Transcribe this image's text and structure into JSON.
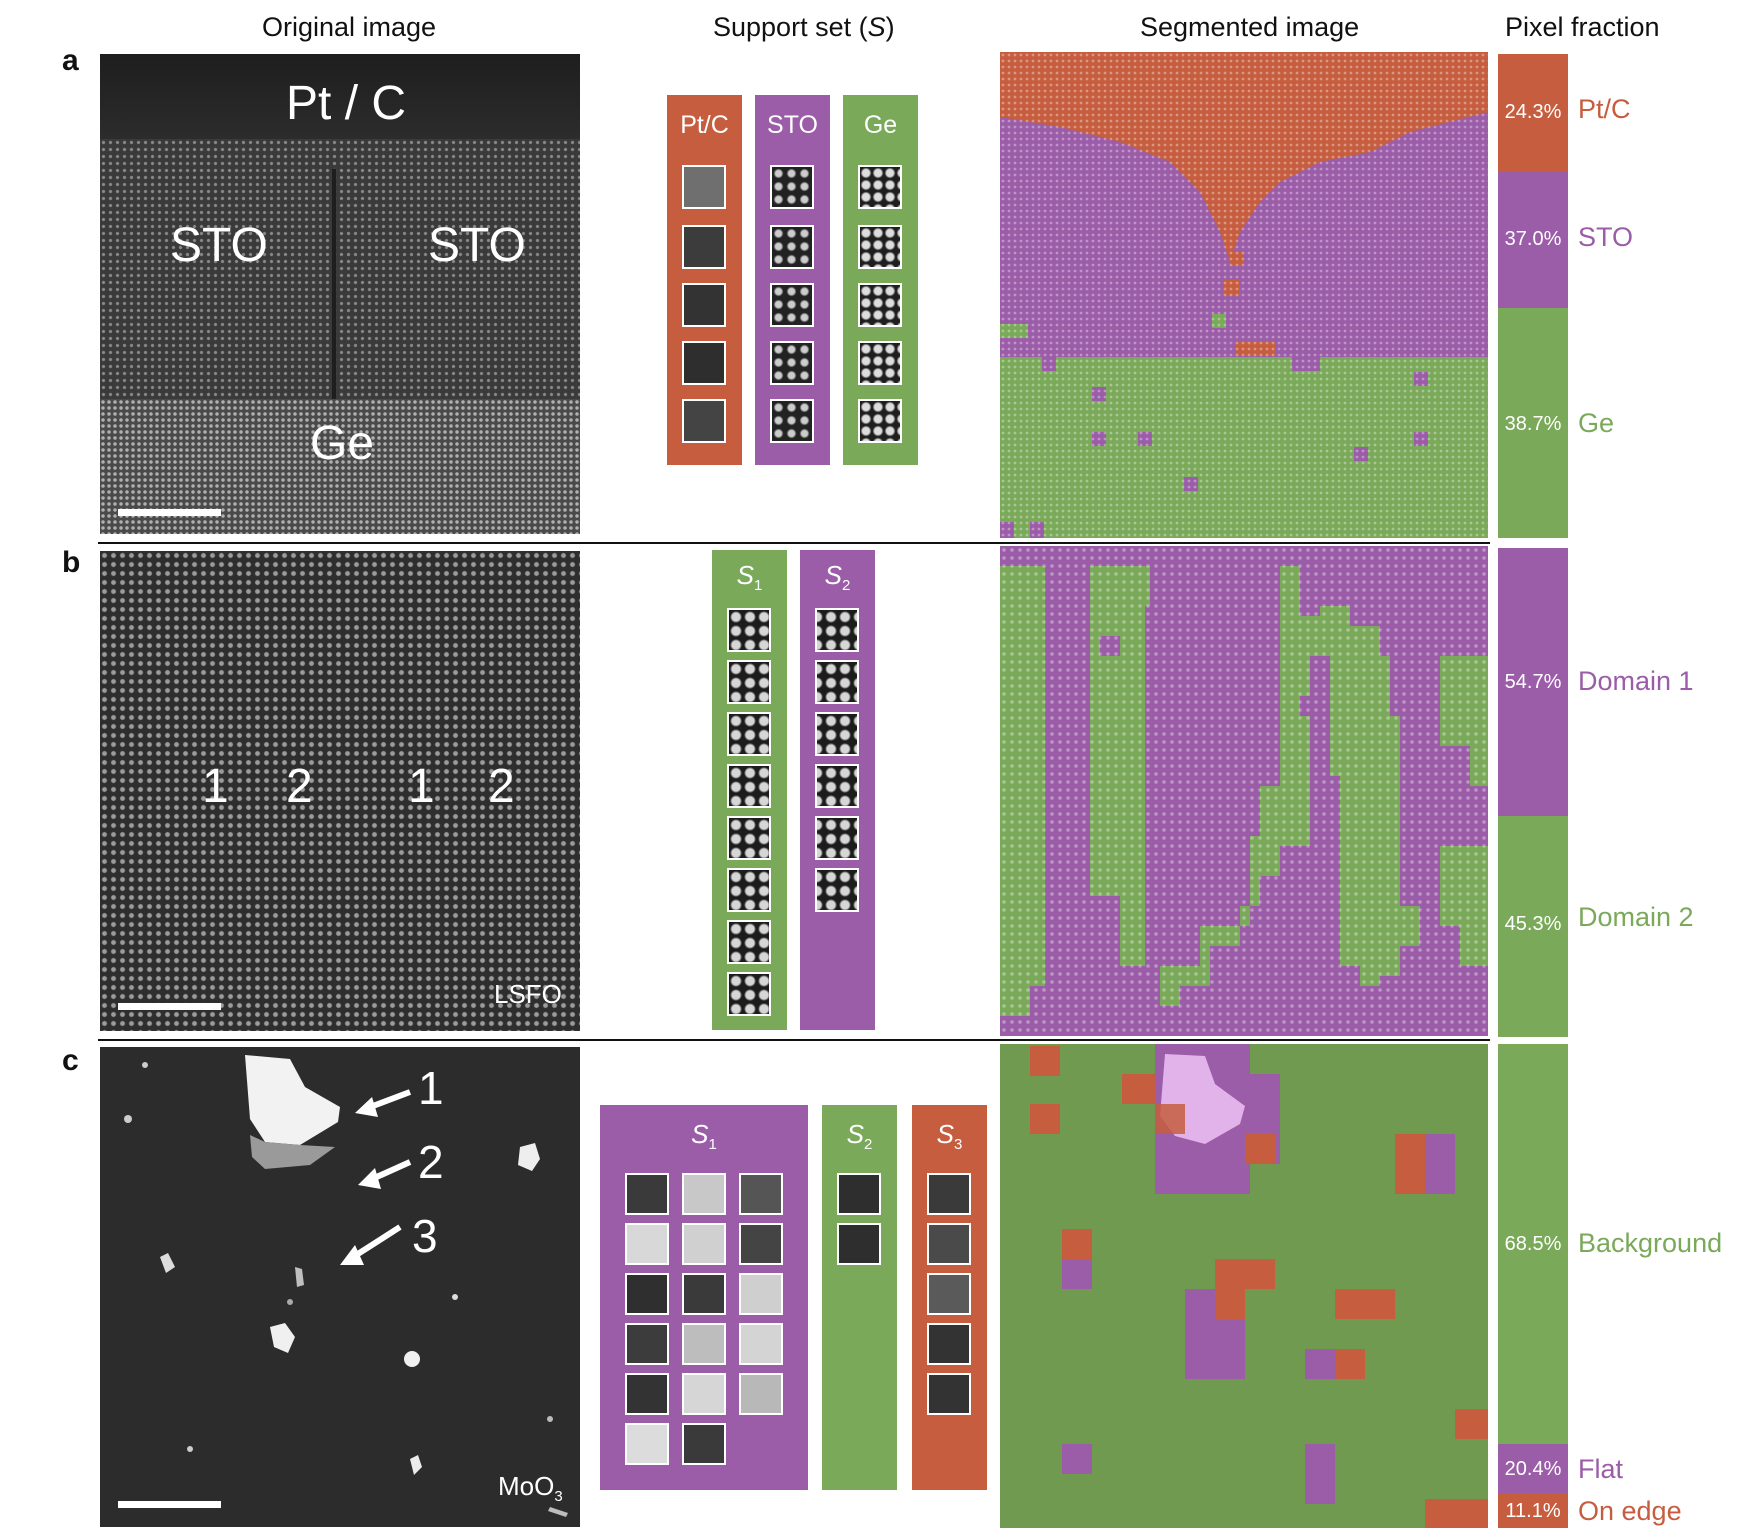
{
  "column_titles": {
    "original": "Original image",
    "support_prefix": "Support set (",
    "support_sym": "S",
    "support_suffix": ")",
    "segmented": "Segmented image",
    "fraction": "Pixel fraction"
  },
  "colors": {
    "ptc": "#c65d3f",
    "sto": "#9b5ca8",
    "ge": "#7aa95a",
    "domain1": "#9b5ca8",
    "domain2": "#7aa95a",
    "background": "#7aa95a",
    "flat": "#9b5ca8",
    "on_edge": "#c65d3f"
  },
  "panel_a": {
    "letter": "a",
    "image_labels": [
      "Pt / C",
      "STO",
      "STO",
      "Ge"
    ],
    "support_columns": [
      "Pt/C",
      "STO",
      "Ge"
    ],
    "fractions": [
      {
        "pct": "24.3%",
        "label": "Pt/C",
        "color": "#c65d3f"
      },
      {
        "pct": "37.0%",
        "label": "STO",
        "color": "#9b5ca8"
      },
      {
        "pct": "38.7%",
        "label": "Ge",
        "color": "#7aa95a"
      }
    ]
  },
  "panel_b": {
    "letter": "b",
    "image_labels": [
      "1",
      "2",
      "1",
      "2"
    ],
    "material": "LSFO",
    "support_columns": [
      {
        "sym": "S",
        "sub": "1"
      },
      {
        "sym": "S",
        "sub": "2"
      }
    ],
    "fractions": [
      {
        "pct": "54.7%",
        "label": "Domain 1",
        "color": "#9b5ca8"
      },
      {
        "pct": "45.3%",
        "label": "Domain 2",
        "color": "#7aa95a"
      }
    ]
  },
  "panel_c": {
    "letter": "c",
    "arrow_labels": [
      "1",
      "2",
      "3"
    ],
    "material_base": "MoO",
    "material_sub": "3",
    "support_columns": [
      {
        "sym": "S",
        "sub": "1"
      },
      {
        "sym": "S",
        "sub": "2"
      },
      {
        "sym": "S",
        "sub": "3"
      }
    ],
    "fractions": [
      {
        "pct": "68.5%",
        "label": "Background",
        "color": "#7aa95a"
      },
      {
        "pct": "20.4%",
        "label": "Flat",
        "color": "#9b5ca8"
      },
      {
        "pct": "11.1%",
        "label": "On edge",
        "color": "#c65d3f"
      }
    ]
  }
}
